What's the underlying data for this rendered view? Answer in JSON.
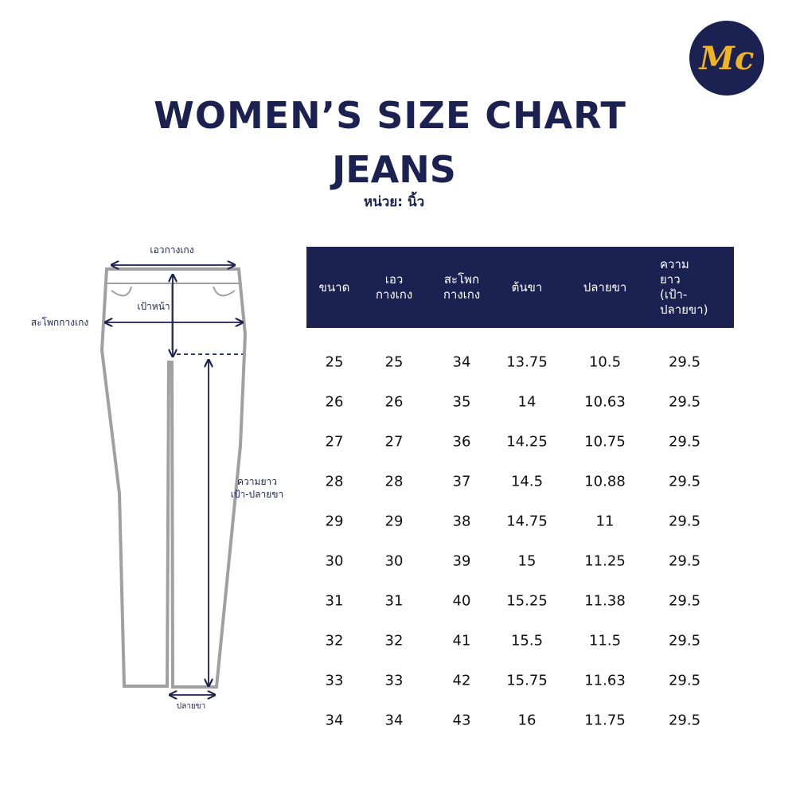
{
  "logo": {
    "text": "Mc"
  },
  "header": {
    "title": "WOMEN’S SIZE CHART",
    "subtitle": "JEANS",
    "unit": "หน่วย: นิ้ว"
  },
  "diagram": {
    "waist": "เอวกางเกง",
    "hip": "สะโพกกางเกง",
    "front_rise": "เป้าหน้า",
    "inseam": [
      "ความยาว",
      "เป้า-ปลายขา"
    ],
    "hem": "ปลายขา"
  },
  "table": {
    "columns": [
      [
        "ขนาด"
      ],
      [
        "เอว",
        "กางเกง"
      ],
      [
        "สะโพก",
        "กางเกง"
      ],
      [
        "ต้นขา"
      ],
      [
        "ปลายขา"
      ],
      [
        "ความยาว",
        "(เป้า-ปลายขา)"
      ]
    ],
    "rows": [
      [
        "25",
        "25",
        "34",
        "13.75",
        "10.5",
        "29.5"
      ],
      [
        "26",
        "26",
        "35",
        "14",
        "10.63",
        "29.5"
      ],
      [
        "27",
        "27",
        "36",
        "14.25",
        "10.75",
        "29.5"
      ],
      [
        "28",
        "28",
        "37",
        "14.5",
        "10.88",
        "29.5"
      ],
      [
        "29",
        "29",
        "38",
        "14.75",
        "11",
        "29.5"
      ],
      [
        "30",
        "30",
        "39",
        "15",
        "11.25",
        "29.5"
      ],
      [
        "31",
        "31",
        "40",
        "15.25",
        "11.38",
        "29.5"
      ],
      [
        "32",
        "32",
        "41",
        "15.5",
        "11.5",
        "29.5"
      ],
      [
        "33",
        "33",
        "42",
        "15.75",
        "11.63",
        "29.5"
      ],
      [
        "34",
        "34",
        "43",
        "16",
        "11.75",
        "29.5"
      ]
    ]
  }
}
